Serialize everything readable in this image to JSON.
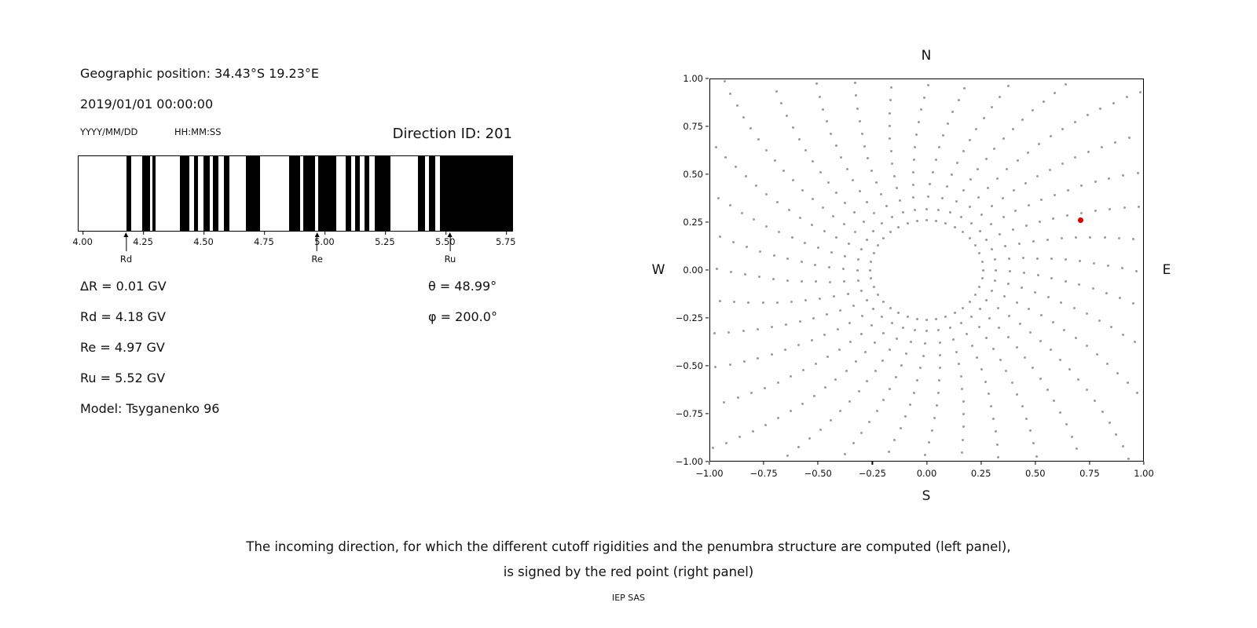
{
  "left_panel": {
    "geo_position": "Geographic position: 34.43°S 19.23°E",
    "datetime": "2019/01/01 00:00:00",
    "date_format_label": "YYYY/MM/DD",
    "time_format_label": "HH:MM:SS",
    "direction_id": "Direction ID: 201",
    "stats": {
      "delta_r": "ΔR = 0.01 GV",
      "rd": "Rd = 4.18 GV",
      "re": "Re = 4.97 GV",
      "ru": "Ru = 5.52 GV",
      "model": "Model: Tsyganenko 96",
      "theta": "θ = 48.99°",
      "phi": "φ = 200.0°"
    }
  },
  "caption": {
    "line1": "The incoming direction, for which the different cutoff rigidities and the penumbra structure are computed (left panel),",
    "line2": "is signed by the red point (right panel)",
    "credit": "IEP SAS"
  },
  "chart_data": [
    {
      "type": "bar",
      "name": "penumbra-structure",
      "xlabel": "",
      "ylabel": "",
      "xlim": [
        3.98,
        5.78
      ],
      "bar_color": "#000000",
      "xticks": [
        {
          "value": 4.0,
          "label": "4.00"
        },
        {
          "value": 4.25,
          "label": "4.25"
        },
        {
          "value": 4.5,
          "label": "4.50"
        },
        {
          "value": 4.75,
          "label": "4.75"
        },
        {
          "value": 5.0,
          "label": "5.00"
        },
        {
          "value": 5.25,
          "label": "5.25"
        },
        {
          "value": 5.5,
          "label": "5.50"
        },
        {
          "value": 5.75,
          "label": "5.75"
        }
      ],
      "forbidden_bands_gv": [
        [
          4.178,
          4.198
        ],
        [
          4.244,
          4.276
        ],
        [
          4.286,
          4.3
        ],
        [
          4.4,
          4.44
        ],
        [
          4.458,
          4.476
        ],
        [
          4.497,
          4.524
        ],
        [
          4.536,
          4.562
        ],
        [
          4.582,
          4.606
        ],
        [
          4.673,
          4.732
        ],
        [
          4.855,
          4.898
        ],
        [
          4.914,
          4.96
        ],
        [
          4.973,
          5.048
        ],
        [
          5.09,
          5.11
        ],
        [
          5.129,
          5.148
        ],
        [
          5.168,
          5.188
        ],
        [
          5.21,
          5.275
        ],
        [
          5.389,
          5.419
        ],
        [
          5.435,
          5.461
        ],
        [
          5.48,
          5.78
        ]
      ],
      "markers": [
        {
          "label": "Rd",
          "value_gv": 4.18
        },
        {
          "label": "Re",
          "value_gv": 4.97
        },
        {
          "label": "Ru",
          "value_gv": 5.52
        }
      ]
    },
    {
      "type": "scatter",
      "name": "incoming-direction-map",
      "xlim": [
        -1,
        1
      ],
      "ylim": [
        -1,
        1
      ],
      "direction_labels": {
        "top": "N",
        "bottom": "S",
        "left": "W",
        "right": "E"
      },
      "gray_color": "#9a9a9a",
      "red_point": {
        "x": 0.71,
        "y": 0.26,
        "color": "#d40000"
      },
      "xticks": [
        {
          "value": -1.0,
          "label": "−1.00"
        },
        {
          "value": -0.75,
          "label": "−0.75"
        },
        {
          "value": -0.5,
          "label": "−0.50"
        },
        {
          "value": -0.25,
          "label": "−0.25"
        },
        {
          "value": 0.0,
          "label": "0.00"
        },
        {
          "value": 0.25,
          "label": "0.25"
        },
        {
          "value": 0.5,
          "label": "0.50"
        },
        {
          "value": 0.75,
          "label": "0.75"
        },
        {
          "value": 1.0,
          "label": "1.00"
        }
      ],
      "yticks": [
        {
          "value": 1.0,
          "label": "1.00"
        },
        {
          "value": 0.75,
          "label": "0.75"
        },
        {
          "value": 0.5,
          "label": "0.50"
        },
        {
          "value": 0.25,
          "label": "0.25"
        },
        {
          "value": 0.0,
          "label": "0.00"
        },
        {
          "value": -0.25,
          "label": "−0.25"
        },
        {
          "value": -0.5,
          "label": "−0.50"
        },
        {
          "value": -0.75,
          "label": "−0.75"
        },
        {
          "value": -1.0,
          "label": "−1.00"
        }
      ],
      "gray_pattern": {
        "ring_radius": 0.26,
        "ring_dots": 36,
        "n_spokes": 36,
        "spoke_r_start": 0.32,
        "spoke_r_step": 0.065,
        "spoke_r_end": 1.38,
        "swirl_deg_per_unit_r": -16,
        "clip": 1.0
      }
    }
  ]
}
